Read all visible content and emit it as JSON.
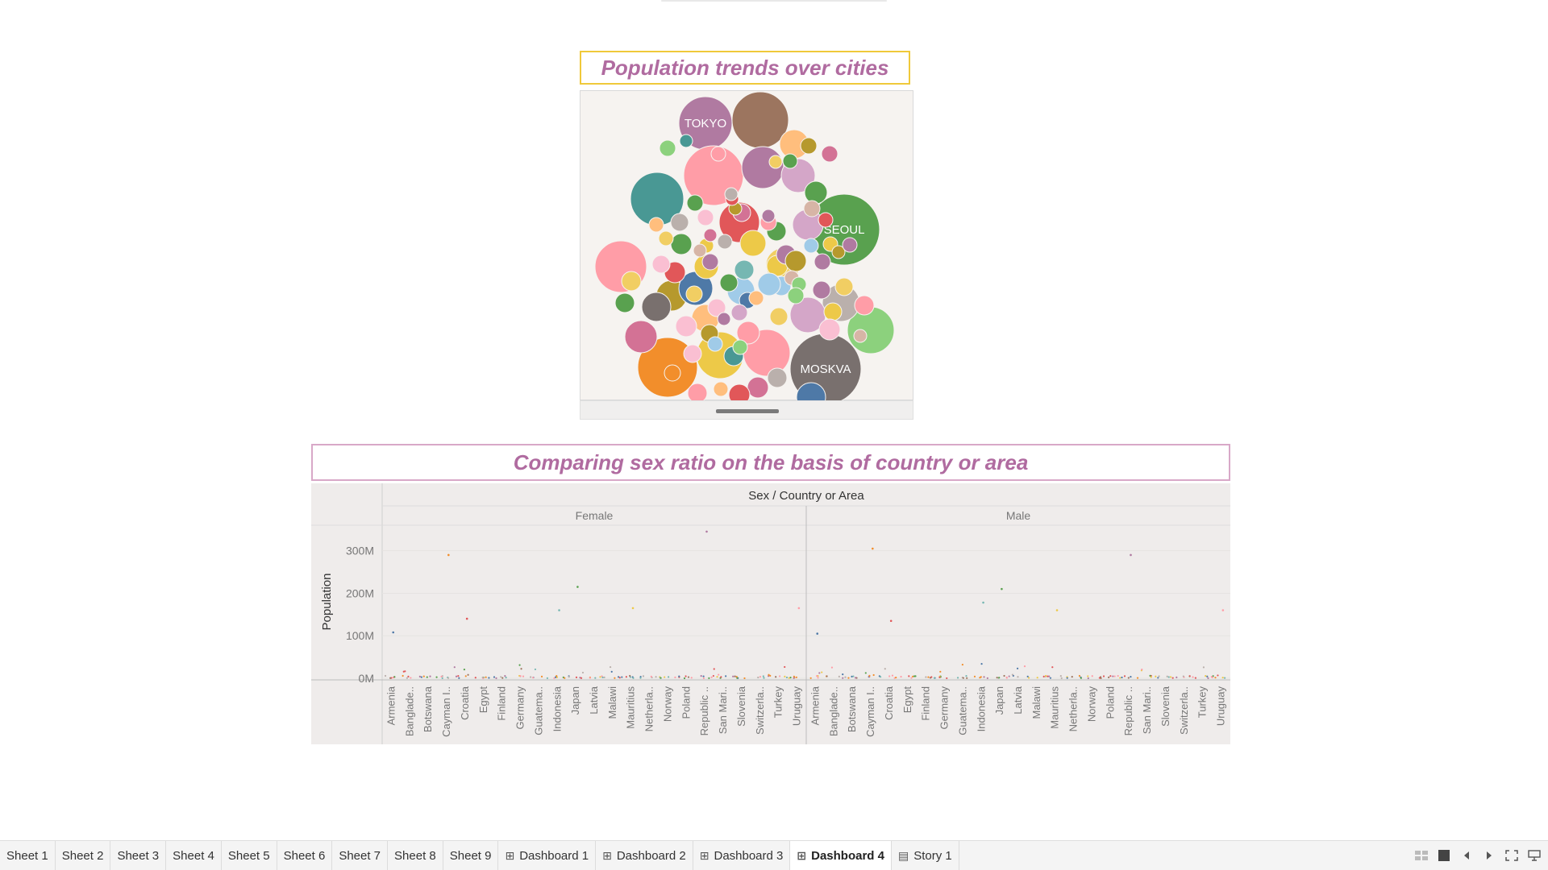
{
  "dashboard": {
    "bubble_title": "Population trends over cities",
    "scatter_title": "Comparing sex ratio on the basis of country or area"
  },
  "chart_data": [
    {
      "type": "bubble",
      "title": "Population trends over cities",
      "labeled_bubbles": [
        {
          "label": "TOKYO",
          "color": "#b07aa1"
        },
        {
          "label": "SEOUL",
          "color": "#59a14f"
        },
        {
          "label": "MOSKVA",
          "color": "#79706e"
        }
      ],
      "palette": [
        "#4e79a7",
        "#f28e2b",
        "#e15759",
        "#76b7b2",
        "#59a14f",
        "#edc948",
        "#b07aa1",
        "#ff9da7",
        "#9c755f",
        "#bab0ac",
        "#79706e",
        "#d37295",
        "#fabfd2",
        "#b6992d",
        "#499894",
        "#8cd17d",
        "#f1ce63",
        "#a0cbe8",
        "#ffbe7d",
        "#d4a6c8",
        "#d7b5a6",
        "#86bcb6"
      ]
    },
    {
      "type": "scatter",
      "title": "Sex / Country or Area",
      "ylabel": "Population",
      "yticks": [
        "300M",
        "200M",
        "100M",
        "0M"
      ],
      "ylim": [
        0,
        360
      ],
      "panels": [
        "Female",
        "Male"
      ],
      "categories": [
        "Armenia",
        "Banglade..",
        "Botswana",
        "Cayman I..",
        "Croatia",
        "Egypt",
        "Finland",
        "Germany",
        "Guatema..",
        "Indonesia",
        "Japan",
        "Latvia",
        "Malawi",
        "Mauritius",
        "Netherla..",
        "Norway",
        "Poland",
        "Republic ..",
        "San Mari..",
        "Slovenia",
        "Switzerla..",
        "Turkey",
        "Uruguay"
      ],
      "highlights": {
        "Female": [
          {
            "category": "Armenia",
            "value": 108
          },
          {
            "category": "Cayman I..",
            "value": 290
          },
          {
            "category": "Croatia",
            "value": 140
          },
          {
            "category": "Indonesia",
            "value": 160
          },
          {
            "category": "Japan",
            "value": 215
          },
          {
            "category": "Mauritius",
            "value": 165
          },
          {
            "category": "Republic ..",
            "value": 345
          },
          {
            "category": "Uruguay",
            "value": 165
          }
        ],
        "Male": [
          {
            "category": "Armenia",
            "value": 105
          },
          {
            "category": "Cayman I..",
            "value": 305
          },
          {
            "category": "Croatia",
            "value": 135
          },
          {
            "category": "Indonesia",
            "value": 178
          },
          {
            "category": "Japan",
            "value": 210
          },
          {
            "category": "Mauritius",
            "value": 160
          },
          {
            "category": "Republic ..",
            "value": 290
          },
          {
            "category": "Uruguay",
            "value": 160
          }
        ]
      }
    }
  ],
  "tabs": [
    {
      "label": "Sheet 1",
      "icon": "",
      "active": false
    },
    {
      "label": "Sheet 2",
      "icon": "",
      "active": false
    },
    {
      "label": "Sheet 3",
      "icon": "",
      "active": false
    },
    {
      "label": "Sheet 4",
      "icon": "",
      "active": false
    },
    {
      "label": "Sheet 5",
      "icon": "",
      "active": false
    },
    {
      "label": "Sheet 6",
      "icon": "",
      "active": false
    },
    {
      "label": "Sheet 7",
      "icon": "",
      "active": false
    },
    {
      "label": "Sheet 8",
      "icon": "",
      "active": false
    },
    {
      "label": "Sheet 9",
      "icon": "",
      "active": false
    },
    {
      "label": "Dashboard 1",
      "icon": "dashboard-grid-icon",
      "active": false
    },
    {
      "label": "Dashboard 2",
      "icon": "dashboard-grid-icon",
      "active": false
    },
    {
      "label": "Dashboard 3",
      "icon": "dashboard-grid-icon",
      "active": false
    },
    {
      "label": "Dashboard 4",
      "icon": "dashboard-grid-icon",
      "active": true
    },
    {
      "label": "Story 1",
      "icon": "story-book-icon",
      "active": false
    }
  ],
  "controls": [
    "show-sheet-sorter-icon",
    "show-filmstrip-icon",
    "previous-sheet-icon",
    "next-sheet-icon",
    "fullscreen-icon",
    "presentation-mode-icon"
  ]
}
